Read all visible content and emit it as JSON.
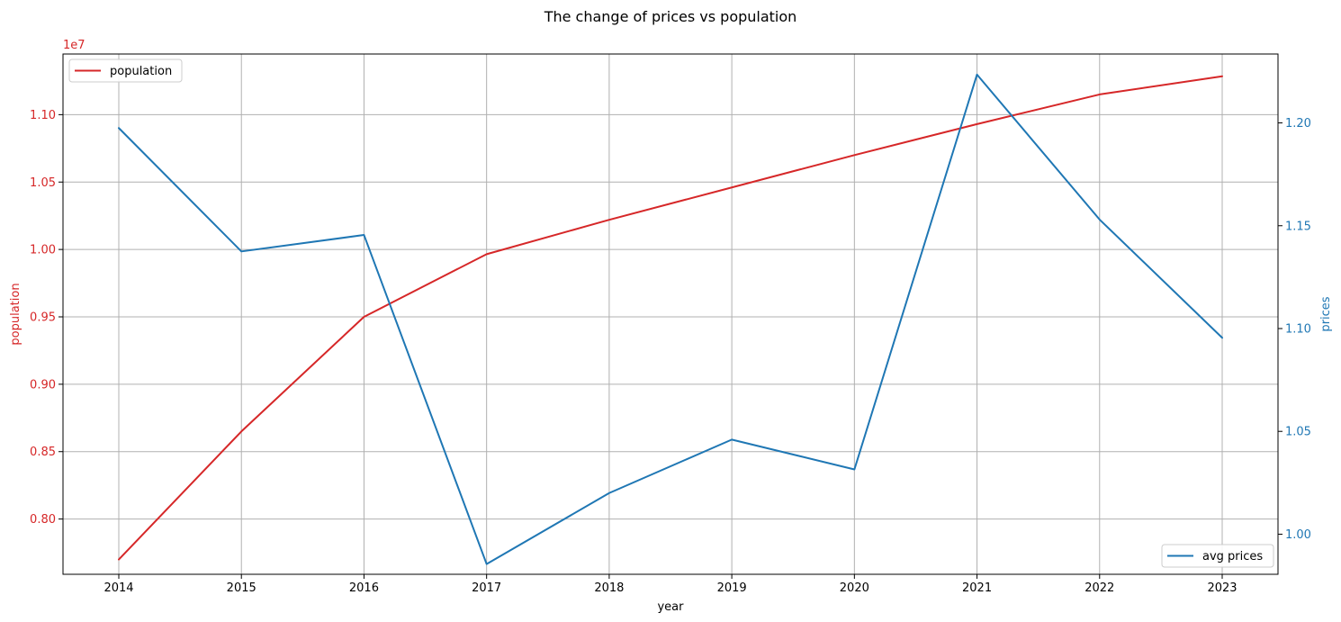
{
  "chart_data": {
    "type": "line",
    "title": "The change of prices vs population",
    "xlabel": "year",
    "y_left_label": "population",
    "y_right_label": "prices",
    "y_left_offset_text": "1e7",
    "categories": [
      2014,
      2015,
      2016,
      2017,
      2018,
      2019,
      2020,
      2021,
      2022,
      2023
    ],
    "x_tick_labels": [
      "2014",
      "2015",
      "2016",
      "2017",
      "2018",
      "2019",
      "2020",
      "2021",
      "2022",
      "2023"
    ],
    "y_left_ticks": [
      0.8,
      0.85,
      0.9,
      0.95,
      1.0,
      1.05,
      1.1
    ],
    "y_left_tick_labels": [
      "0.80",
      "0.85",
      "0.90",
      "0.95",
      "1.00",
      "1.05",
      "1.10"
    ],
    "y_right_ticks": [
      1.0,
      1.05,
      1.1,
      1.15,
      1.2
    ],
    "y_right_tick_labels": [
      "1.00",
      "1.05",
      "1.10",
      "1.15",
      "1.20"
    ],
    "y_left_lim": [
      7590000.0,
      11450000.0
    ],
    "y_right_lim": [
      0.9805,
      1.2335
    ],
    "grid": true,
    "series": [
      {
        "name": "population",
        "axis": "left",
        "color": "#d62728",
        "legend_location": "upper left",
        "values": [
          7700000.0,
          8650000.0,
          9500000.0,
          9965000.0,
          10220000.0,
          10460000.0,
          10700000.0,
          10930000.0,
          11150000.0,
          11285000.0
        ]
      },
      {
        "name": "avg prices",
        "axis": "right",
        "color": "#1f77b4",
        "legend_location": "lower right",
        "values": [
          1.1975,
          1.1375,
          1.1455,
          0.9855,
          1.02,
          1.046,
          1.0315,
          1.2235,
          1.153,
          1.0955
        ]
      }
    ]
  }
}
